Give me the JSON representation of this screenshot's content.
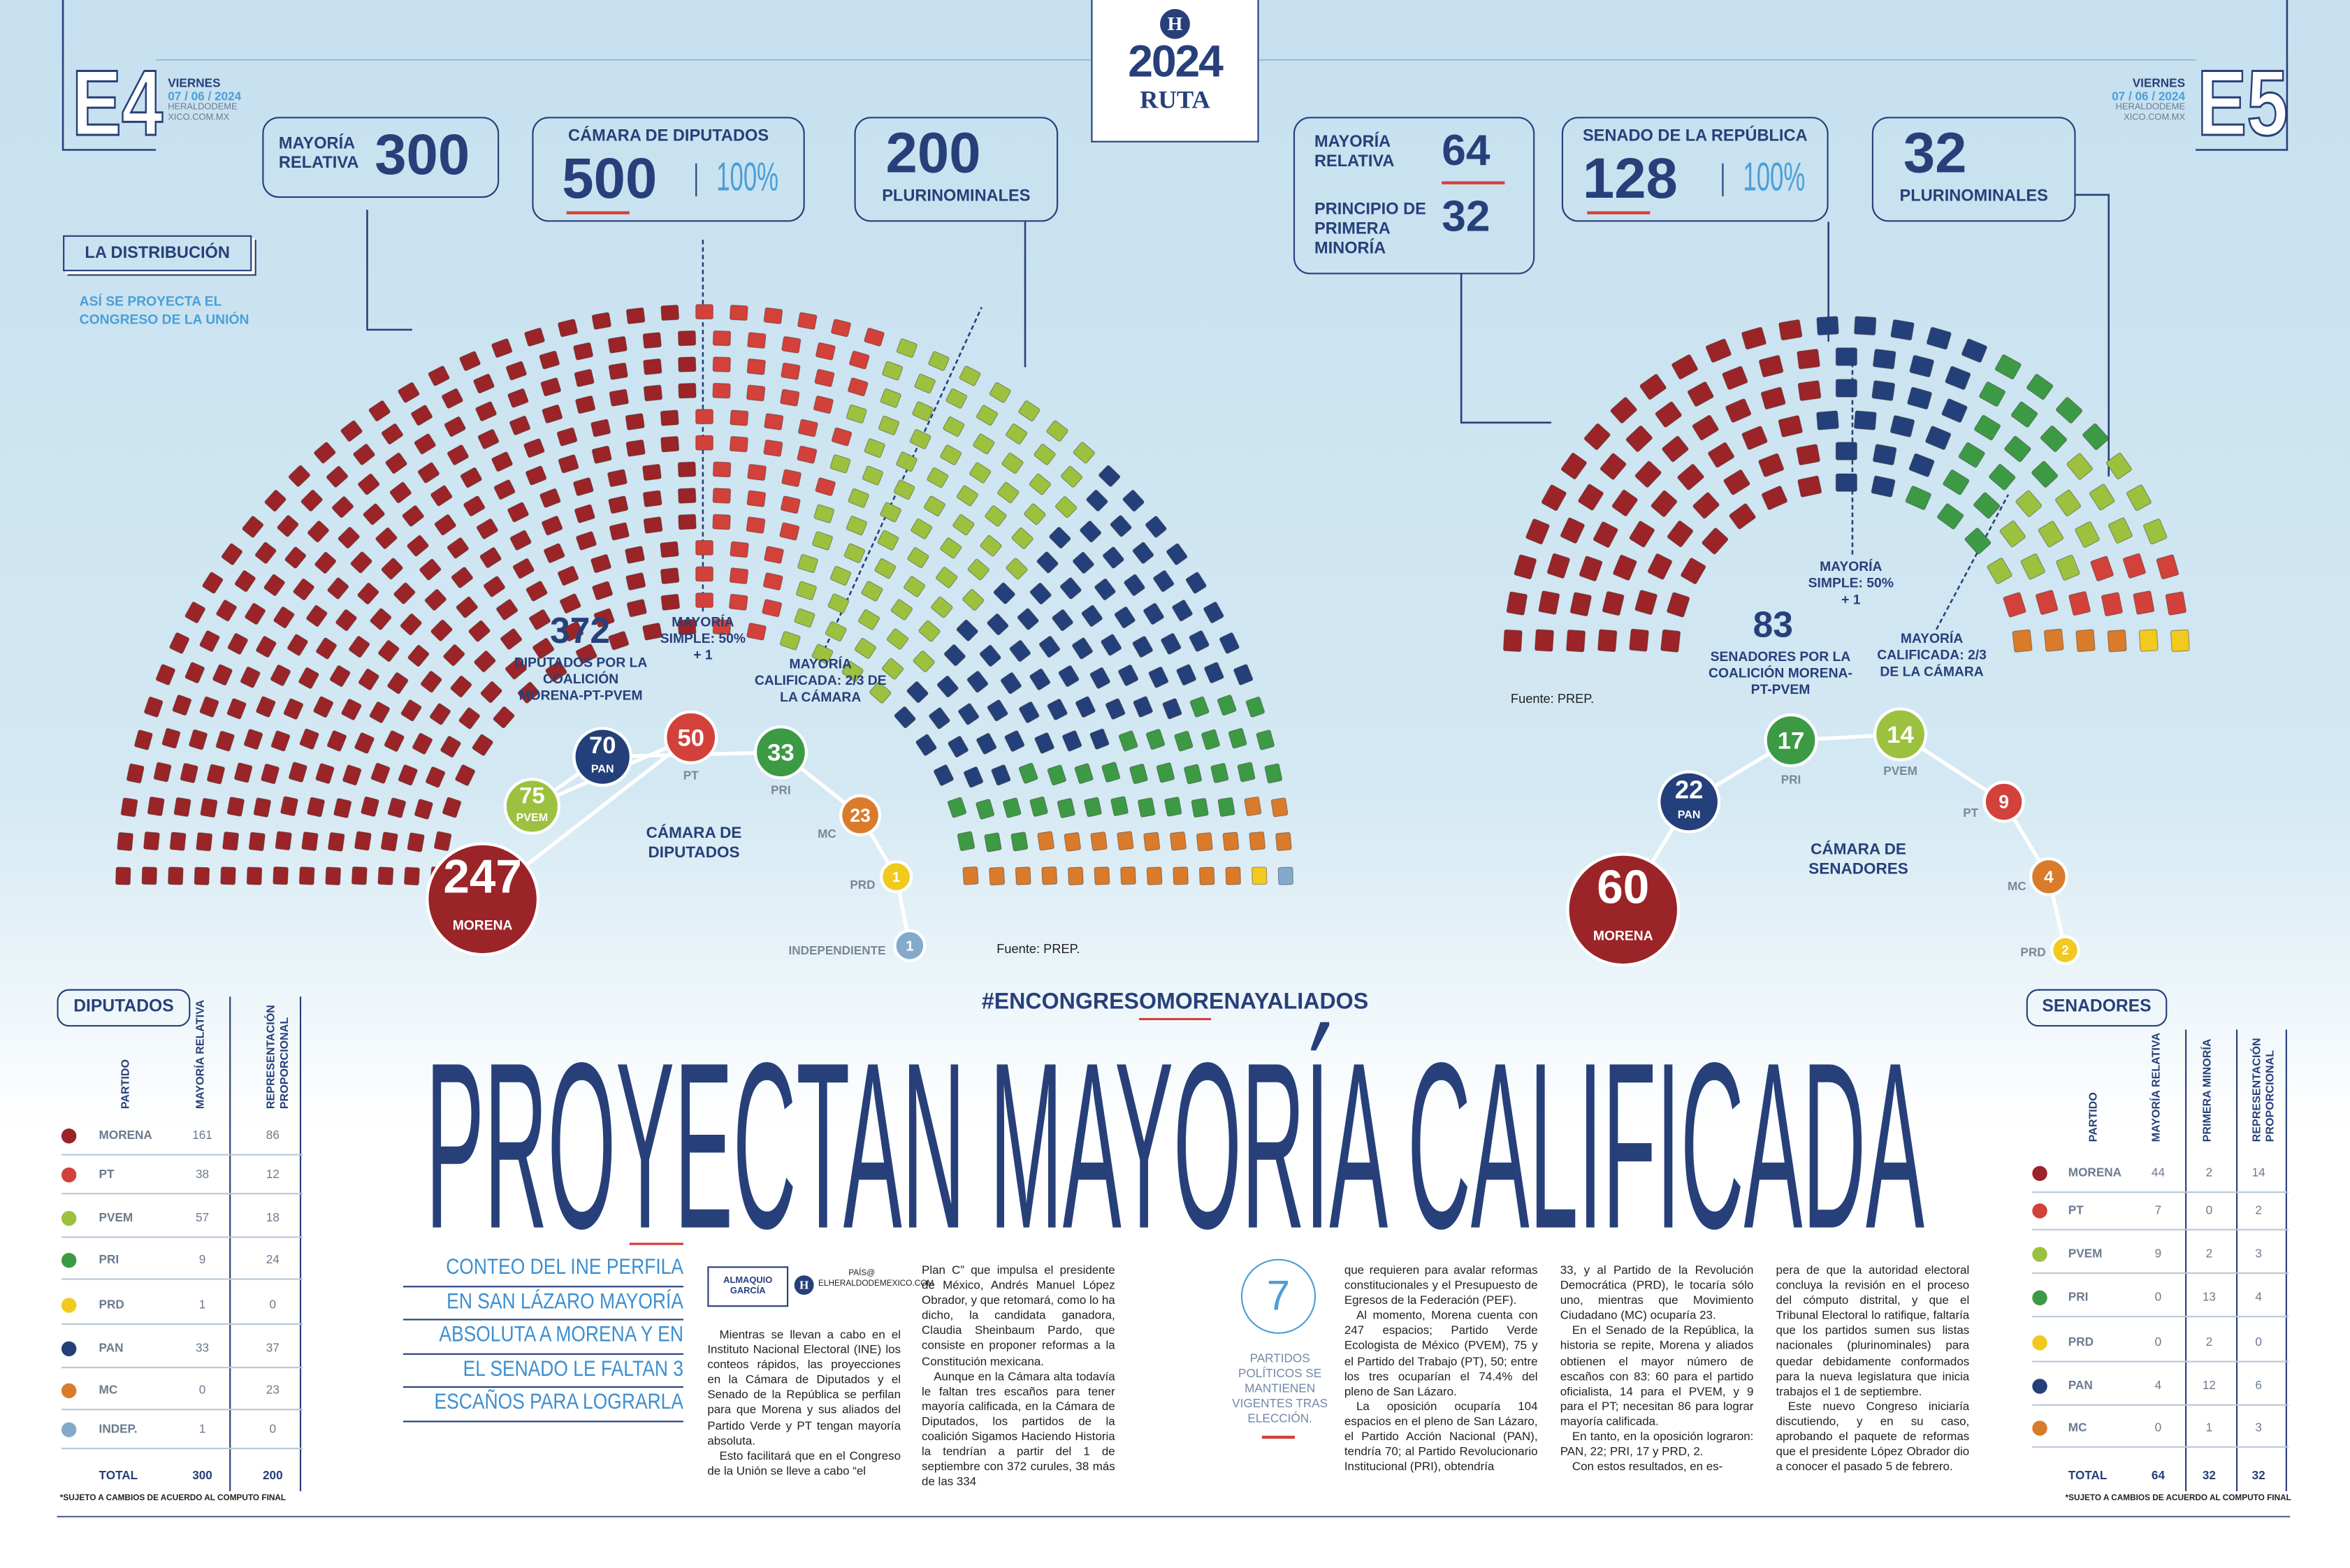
{
  "header": {
    "left_page": "E4",
    "right_page": "E5",
    "day": "VIERNES",
    "date": "07 / 06 / 2024",
    "site": "HERALDODEMEXICO.COM.MX",
    "logo_mark": "H",
    "logo_year": "2024",
    "logo_name": "RUTA"
  },
  "distribution": {
    "title": "LA DISTRIBUCIÓN",
    "subtitle": "ASÍ SE PROYECTA EL CONGRESO DE LA UNIÓN"
  },
  "diputados": {
    "mr_label": "MAYORÍA RELATIVA",
    "mr_value": 300,
    "chamber_label": "CÁMARA DE DIPUTADOS",
    "chamber_value": 500,
    "chamber_pct": "100%",
    "pluri_value": 200,
    "pluri_label": "PLURINOMINALES",
    "coalition_value": 372,
    "coalition_label": "DIPUTADOS POR LA COALICIÓN MORENA-PT-PVEM",
    "simple_label": "MAYORÍA SIMPLE: 50% + 1",
    "qualified_label": "MAYORÍA CALIFICADA: 2/3 DE LA CÁMARA",
    "hemicycle_label": "CÁMARA DE DIPUTADOS",
    "source": "Fuente: PREP.",
    "parties": [
      {
        "name": "MORENA",
        "seats": 247,
        "color": "#9a2427"
      },
      {
        "name": "PT",
        "seats": 50,
        "color": "#d2413a"
      },
      {
        "name": "PVEM",
        "seats": 75,
        "color": "#9cc13f"
      },
      {
        "name": "PAN",
        "seats": 70,
        "color": "#24407a"
      },
      {
        "name": "PRI",
        "seats": 33,
        "color": "#3c9a45"
      },
      {
        "name": "MC",
        "seats": 23,
        "color": "#d97b2b"
      },
      {
        "name": "PRD",
        "seats": 1,
        "color": "#f1c91f"
      },
      {
        "name": "INDEPENDIENTE",
        "seats": 1,
        "color": "#84aacb"
      }
    ]
  },
  "senadores": {
    "mr_label": "MAYORÍA RELATIVA",
    "mr_value": 64,
    "pm_label": "PRINCIPIO DE PRIMERA MINORÍA",
    "pm_value": 32,
    "chamber_label": "SENADO DE LA REPÚBLICA",
    "chamber_value": 128,
    "chamber_pct": "100%",
    "pluri_value": 32,
    "pluri_label": "PLURINOMINALES",
    "coalition_value": 83,
    "coalition_label": "SENADORES POR LA COALICIÓN MORENA-PT-PVEM",
    "simple_label": "MAYORÍA SIMPLE: 50% + 1",
    "qualified_label": "MAYORÍA CALIFICADA: 2/3 DE LA CÁMARA",
    "hemicycle_label": "CÁMARA DE SENADORES",
    "source": "Fuente: PREP.",
    "parties": [
      {
        "name": "MORENA",
        "seats": 60,
        "color": "#9a2427"
      },
      {
        "name": "PAN",
        "seats": 22,
        "color": "#24407a"
      },
      {
        "name": "PRI",
        "seats": 17,
        "color": "#3c9a45"
      },
      {
        "name": "PVEM",
        "seats": 14,
        "color": "#9cc13f"
      },
      {
        "name": "PT",
        "seats": 9,
        "color": "#d2413a"
      },
      {
        "name": "MC",
        "seats": 4,
        "color": "#d97b2b"
      },
      {
        "name": "PRD",
        "seats": 2,
        "color": "#f1c91f"
      }
    ]
  },
  "hashtag": "#ENCONGRESOMORENAYALIADOS",
  "headline": "PROYECTAN MAYORÍA CALIFICADA",
  "deck": [
    "CONTEO DEL INE PERFILA",
    "EN SAN LÁZARO MAYORÍA",
    "ABSOLUTA A MORENA Y EN",
    "EL SENADO LE FALTAN 3",
    "ESCAÑOS PARA LOGRARLA"
  ],
  "byline": {
    "author": "ALMAQUIO GARCÍA",
    "mark": "H",
    "contact": "PAÍS@ ELHERALDODEMEXICO.COM"
  },
  "sidebar": {
    "value": 7,
    "text": "PARTIDOS POLÍTICOS SE MANTIENEN VIGENTES TRAS ELECCIÓN."
  },
  "article": {
    "columns": [
      [
        "Mientras se llevan a cabo en el Instituto Nacional Electoral (INE) los conteos rápidos, las proyecciones en la Cámara de Diputados y el Senado de la República se perfilan para que Morena y sus aliados del Partido Verde y PT tengan mayoría absoluta.",
        "Esto facilitará que en el Congreso de la Unión se lleve a cabo “el"
      ],
      [
        "Plan C” que impulsa el presidente de México, Andrés Manuel López Obrador, y que retomará, como lo ha dicho, la candidata ganadora, Claudia Sheinbaum Pardo, que consiste en proponer reformas a la Constitución mexicana.",
        "Aunque en la Cámara alta todavía le faltan tres escaños para tener mayoría calificada, en la Cámara de Diputados, los partidos de la coalición Sigamos Haciendo Historia la tendrían a partir del 1 de septiembre con 372 curules, 38 más de las 334"
      ],
      [
        "que requieren para avalar reformas constitucionales y el Presupuesto de Egresos de la Federación (PEF).",
        "Al momento, Morena cuenta con 247 espacios; Partido Verde Ecologista de México (PVEM), 75 y el Partido del Trabajo (PT), 50; entre los tres ocuparían el 74.4% del pleno de San Lázaro.",
        "La oposición ocuparía 104 espacios en el pleno de San Lázaro, el Partido Acción Nacional (PAN), tendría 70; al Partido Revolucionario Institucional (PRI), obtendría"
      ],
      [
        "33, y al Partido de la Revolución Democrática (PRD), le tocaría sólo uno, mientras que Movimiento Ciudadano (MC) ocuparía 23.",
        "En el Senado de la República, la historia se repite, Morena y aliados obtienen el mayor número de escaños con 83: 60 para el partido oficialista, 14 para el PVEM, y 9 para el PT; necesitan 86 para lograr mayoría calificada.",
        "En tanto, en la oposición lograron: PAN, 22; PRI, 17 y PRD, 2.",
        "Con estos resultados, en es-"
      ],
      [
        "pera de que la autoridad electoral concluya la revisión en el proceso del cómputo distrital, y que el Tribunal Electoral lo ratifique, faltaría que los partidos sumen sus listas nacionales (plurinominales) para quedar debidamente conformados para la nueva legislatura que inicia trabajos el 1 de septiembre.",
        "Este nuevo Congreso iniciaría discutiendo, y en su caso, aprobando el paquete de reformas que el presidente López Obrador dio a conocer el pasado 5 de febrero."
      ]
    ]
  },
  "table_diputados": {
    "title": "DIPUTADOS",
    "columns": [
      "PARTIDO",
      "MAYORÍA RELATIVA",
      "REPRESENTACIÓN PROPORCIONAL"
    ],
    "rows": [
      {
        "name": "MORENA",
        "color": "#9a2427",
        "values": [
          161,
          86
        ]
      },
      {
        "name": "PT",
        "color": "#d2413a",
        "values": [
          38,
          12
        ]
      },
      {
        "name": "PVEM",
        "color": "#9cc13f",
        "values": [
          57,
          18
        ]
      },
      {
        "name": "PRI",
        "color": "#3c9a45",
        "values": [
          9,
          24
        ]
      },
      {
        "name": "PRD",
        "color": "#f1c91f",
        "values": [
          1,
          0
        ]
      },
      {
        "name": "PAN",
        "color": "#24407a",
        "values": [
          33,
          37
        ]
      },
      {
        "name": "MC",
        "color": "#d97b2b",
        "values": [
          0,
          23
        ]
      },
      {
        "name": "INDEP.",
        "color": "#84aacb",
        "values": [
          1,
          0
        ]
      }
    ],
    "total": {
      "name": "TOTAL",
      "values": [
        300,
        200
      ]
    },
    "note": "*SUJETO A CAMBIOS DE ACUERDO AL COMPUTO FINAL"
  },
  "table_senadores": {
    "title": "SENADORES",
    "columns": [
      "PARTIDO",
      "MAYORÍA RELATIVA",
      "PRIMERA MINORÍA",
      "REPRESENTACIÓN PROPORCIONAL"
    ],
    "rows": [
      {
        "name": "MORENA",
        "color": "#9a2427",
        "values": [
          44,
          2,
          14
        ]
      },
      {
        "name": "PT",
        "color": "#d2413a",
        "values": [
          7,
          0,
          2
        ]
      },
      {
        "name": "PVEM",
        "color": "#9cc13f",
        "values": [
          9,
          2,
          3
        ]
      },
      {
        "name": "PRI",
        "color": "#3c9a45",
        "values": [
          0,
          13,
          4
        ]
      },
      {
        "name": "PRD",
        "color": "#f1c91f",
        "values": [
          0,
          2,
          0
        ]
      },
      {
        "name": "PAN",
        "color": "#24407a",
        "values": [
          4,
          12,
          6
        ]
      },
      {
        "name": "MC",
        "color": "#d97b2b",
        "values": [
          0,
          1,
          3
        ]
      }
    ],
    "total": {
      "name": "TOTAL",
      "values": [
        64,
        32,
        32
      ]
    },
    "note": "*SUJETO A CAMBIOS DE ACUERDO AL COMPUTO FINAL"
  }
}
